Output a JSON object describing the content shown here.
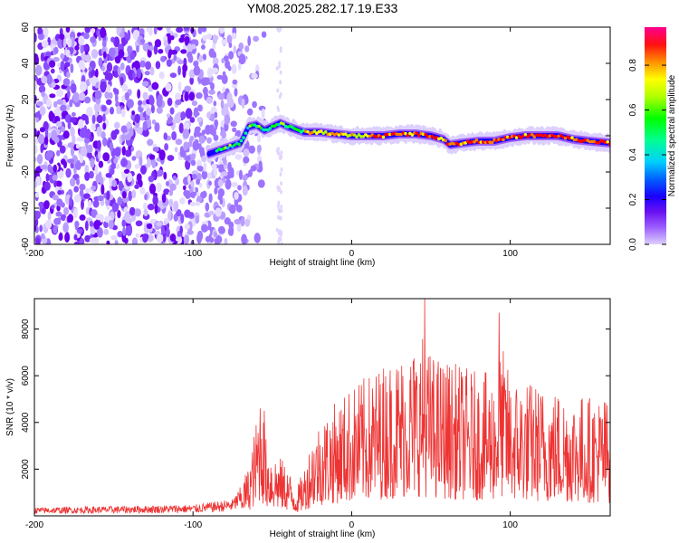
{
  "title": "YM08.2025.282.17.19.E33",
  "chart_data": [
    {
      "type": "heatmap",
      "xlabel": "Height of straight line (km)",
      "ylabel": "Frequency (Hz)",
      "xlim": [
        -200,
        163
      ],
      "ylim": [
        -60,
        60
      ],
      "x_ticks": [
        -200,
        -100,
        0,
        100
      ],
      "y_ticks": [
        -60,
        -40,
        -20,
        0,
        20,
        40,
        60
      ],
      "colorbar": {
        "label": "Normalized spectral amplitude",
        "range": [
          0,
          0.97
        ],
        "ticks": [
          "0.0",
          "0.2",
          "0.4",
          "0.6",
          "0.8"
        ],
        "colormap": [
          "#d9c9ff",
          "#9b5cff",
          "#5a00e0",
          "#0000ff",
          "#00c8ff",
          "#00ff80",
          "#00ff00",
          "#a0ff00",
          "#ffff00",
          "#ff8000",
          "#ff0000",
          "#ff0080"
        ]
      },
      "ridge": {
        "description": "dominant frequency track (Hz) vs height (km)",
        "x": [
          -90,
          -80,
          -70,
          -65,
          -60,
          -55,
          -50,
          -45,
          -40,
          -30,
          -20,
          -10,
          0,
          10,
          20,
          30,
          40,
          50,
          58,
          62,
          70,
          80,
          90,
          100,
          110,
          120,
          130,
          140,
          150,
          163
        ],
        "y": [
          -10,
          -7,
          -4,
          5,
          6,
          3,
          5,
          7,
          5,
          2,
          2,
          1,
          0,
          0,
          0,
          1,
          1,
          0,
          -2,
          -5,
          -4,
          -3,
          -3,
          -1,
          0,
          0,
          0,
          -2,
          -3,
          -4
        ]
      },
      "noise_region_x": [
        -200,
        -75
      ]
    },
    {
      "type": "line",
      "xlabel": "Height of straight line (km)",
      "ylabel": "SNR (10 * v/v)",
      "xlim": [
        -200,
        163
      ],
      "ylim": [
        0,
        9300
      ],
      "x_ticks": [
        -200,
        -100,
        0,
        100
      ],
      "y_ticks": [
        2000,
        4000,
        6000,
        8000
      ],
      "series": [
        {
          "name": "SNR",
          "color": "#ee3333",
          "envelope_x": [
            -200,
            -150,
            -100,
            -75,
            -65,
            -60,
            -57,
            -55,
            -50,
            -45,
            -40,
            -35,
            -30,
            -25,
            -20,
            -10,
            0,
            10,
            20,
            30,
            40,
            45,
            50,
            60,
            70,
            80,
            90,
            95,
            100,
            110,
            120,
            130,
            140,
            150,
            160,
            163
          ],
          "envelope_y": [
            300,
            350,
            400,
            600,
            1500,
            3000,
            4500,
            2500,
            2000,
            1800,
            1500,
            800,
            1500,
            2500,
            3000,
            3500,
            4000,
            4300,
            4700,
            5000,
            5300,
            5600,
            5000,
            4800,
            4600,
            4400,
            4400,
            5200,
            4300,
            4200,
            4000,
            3900,
            3800,
            3700,
            3700,
            3600
          ],
          "peaks": [
            {
              "x": 46,
              "y": 9300
            },
            {
              "x": 93,
              "y": 8700
            },
            {
              "x": -55,
              "y": 4500
            }
          ]
        }
      ]
    }
  ]
}
